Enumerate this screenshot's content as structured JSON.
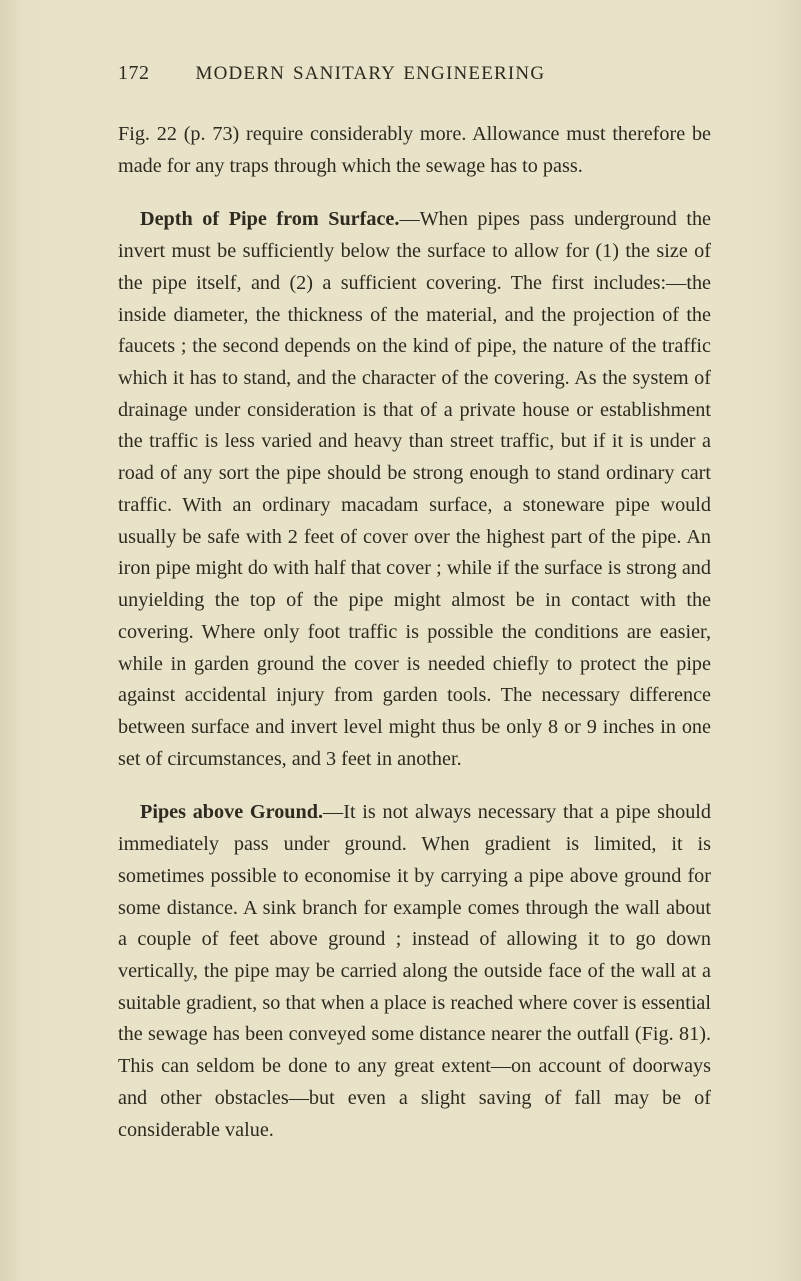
{
  "page": {
    "number": "172",
    "running_title": "MODERN SANITARY ENGINEERING"
  },
  "colors": {
    "paper": "#e8e2c8",
    "ink": "#2d2a1f"
  },
  "typography": {
    "body_fontsize_pt": 20.2,
    "line_height": 1.57,
    "header_fontsize_pt": 20,
    "font_family": "Georgia, Times New Roman, serif"
  },
  "paragraphs": {
    "p1": "Fig. 22 (p. 73) require considerably more. Allowance must therefore be made for any traps through which the sewage has to pass.",
    "p2_lead": "Depth of Pipe from Surface.",
    "p2_body": "—When pipes pass underground the invert must be sufficiently below the surface to allow for (1) the size of the pipe itself, and (2) a sufficient covering. The first includes:—the inside diameter, the thickness of the material, and the projection of the faucets ; the second depends on the kind of pipe, the nature of the traffic which it has to stand, and the character of the covering. As the system of drainage under consideration is that of a private house or establishment the traffic is less varied and heavy than street traffic, but if it is under a road of any sort the pipe should be strong enough to stand ordinary cart traffic. With an ordinary macadam surface, a stoneware pipe would usually be safe with 2 feet of cover over the highest part of the pipe. An iron pipe might do with half that cover ; while if the surface is strong and unyielding the top of the pipe might almost be in contact with the covering. Where only foot traffic is possible the conditions are easier, while in garden ground the cover is needed chiefly to protect the pipe against accidental injury from garden tools. The necessary difference between surface and invert level might thus be only 8 or 9 inches in one set of circumstances, and 3 feet in another.",
    "p3_lead": "Pipes above Ground.",
    "p3_body": "—It is not always necessary that a pipe should immediately pass under ground. When gradient is limited, it is sometimes possible to economise it by carrying a pipe above ground for some distance. A sink branch for example comes through the wall about a couple of feet above ground ; instead of allowing it to go down vertically, the pipe may be carried along the outside face of the wall at a suitable gradient, so that when a place is reached where cover is essential the sewage has been conveyed some distance nearer the outfall (Fig. 81). This can seldom be done to any great extent—on account of doorways and other obstacles—but even a slight saving of fall may be of considerable value."
  }
}
